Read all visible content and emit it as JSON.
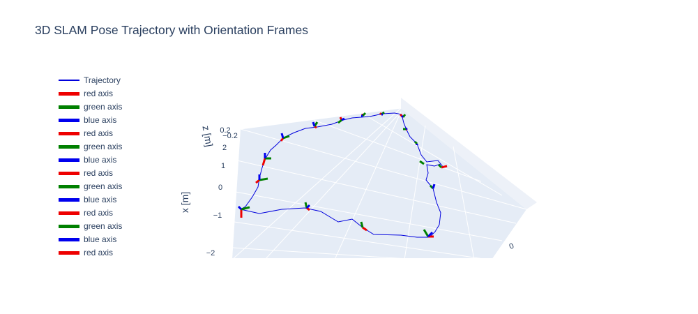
{
  "title": "3D SLAM Pose Trajectory with Orientation Frames",
  "colors": {
    "trajectory": "#0000dd",
    "red_axis": "#ee0000",
    "green_axis": "#008000",
    "blue_axis": "#0000ee",
    "scene_bg": "#e5ecf6",
    "grid": "#ffffff"
  },
  "legend": {
    "items": [
      {
        "label": "Trajectory",
        "color": "#0000dd",
        "style": "thin"
      },
      {
        "label": "red axis",
        "color": "#ee0000",
        "style": "thick"
      },
      {
        "label": "green axis",
        "color": "#008000",
        "style": "thick"
      },
      {
        "label": "blue axis",
        "color": "#0000ee",
        "style": "thick"
      },
      {
        "label": "red axis",
        "color": "#ee0000",
        "style": "thick"
      },
      {
        "label": "green axis",
        "color": "#008000",
        "style": "thick"
      },
      {
        "label": "blue axis",
        "color": "#0000ee",
        "style": "thick"
      },
      {
        "label": "red axis",
        "color": "#ee0000",
        "style": "thick"
      },
      {
        "label": "green axis",
        "color": "#008000",
        "style": "thick"
      },
      {
        "label": "blue axis",
        "color": "#0000ee",
        "style": "thick"
      },
      {
        "label": "red axis",
        "color": "#ee0000",
        "style": "thick"
      },
      {
        "label": "green axis",
        "color": "#008000",
        "style": "thick"
      },
      {
        "label": "blue axis",
        "color": "#0000ee",
        "style": "thick"
      },
      {
        "label": "red axis",
        "color": "#ee0000",
        "style": "thick"
      }
    ]
  },
  "chart_data": {
    "type": "scatter3d",
    "title": "3D SLAM Pose Trajectory with Orientation Frames",
    "axes": {
      "x": {
        "title": "x [m]",
        "ticks": [
          "2",
          "1",
          "0",
          "−1",
          "−2"
        ]
      },
      "z": {
        "title": "z [m]",
        "ticks": [
          "0.2",
          "−0.2"
        ]
      },
      "y": {
        "ticks": [
          "0"
        ]
      }
    },
    "series": [
      {
        "name": "Trajectory",
        "mode": "lines"
      }
    ],
    "legend_position": "left",
    "grid": true
  }
}
